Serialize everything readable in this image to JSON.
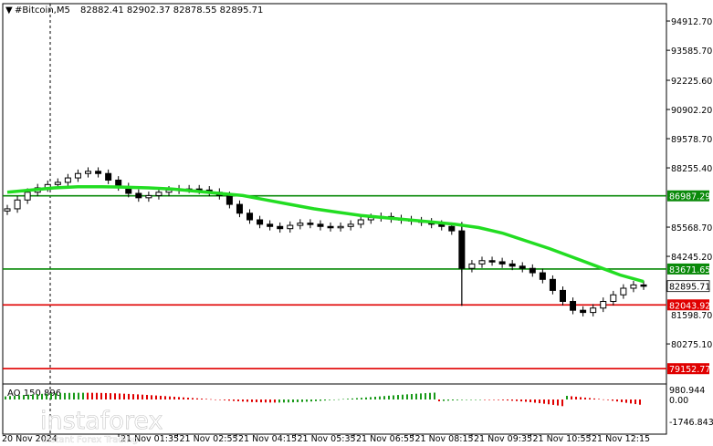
{
  "header": {
    "symbol": "#Bitcoin,M5",
    "ohlc": "82882.41 82902.37 82878.55 82895.71"
  },
  "price_axis": {
    "ticks": [
      "94912.70",
      "93585.70",
      "92225.60",
      "90902.20",
      "89578.70",
      "88255.40",
      "85568.70",
      "84245.20",
      "80275.10",
      "79152.77"
    ],
    "min": 78500,
    "max": 95700
  },
  "levels": [
    {
      "label": "86987.29",
      "price": 86987.29,
      "color": "#0a8a0a",
      "tag_bg": "#0a8a0a",
      "tag_fg": "#ffffff"
    },
    {
      "label": "83671.65",
      "price": 83671.65,
      "color": "#0a8a0a",
      "tag_bg": "#0a8a0a",
      "tag_fg": "#ffffff"
    },
    {
      "label": "82043.92",
      "price": 82043.92,
      "color": "#e00000",
      "tag_bg": "#e00000",
      "tag_fg": "#ffffff"
    },
    {
      "label": "79152.77",
      "price": 79152.77,
      "color": "#e00000",
      "tag_bg": "#e00000",
      "tag_fg": "#ffffff"
    }
  ],
  "current_price": {
    "label": "82895.71",
    "price": 82895.71
  },
  "extra_price_labels": [
    {
      "label": "81598.70",
      "price": 81598.7
    }
  ],
  "time_axis": {
    "labels": [
      "21 Nov 01:35",
      "21 Nov 02:55",
      "21 Nov 04:15",
      "21 Nov 05:35",
      "21 Nov 06:55",
      "21 Nov 08:15",
      "21 Nov 09:35",
      "21 Nov 10:55",
      "21 Nov 12:15"
    ],
    "left_partial": "20 Nov 2024"
  },
  "indicator": {
    "label": "AO 150.896",
    "axis_top": "980.944",
    "axis_zero": "0.00",
    "axis_bottom": "-1746.843"
  },
  "watermark": {
    "brand": "instaforex",
    "tagline": "Instant Forex Trading"
  },
  "colors": {
    "ma": "#22dd22",
    "candle": "#000000",
    "ao_up": "#1a9a1a",
    "ao_down": "#e00000",
    "grid": "#cccccc"
  },
  "chart_data": {
    "type": "line",
    "series": [
      {
        "values": [
          86400,
          86800,
          87150,
          87350,
          87500,
          87600,
          87800,
          88000,
          88100,
          88000,
          87700,
          87400,
          87100,
          86900,
          87000,
          87150,
          87250,
          87300,
          87300,
          87250,
          87150,
          87000,
          86600,
          86200,
          85900,
          85700,
          85600,
          85500,
          85650,
          85750,
          85700,
          85600,
          85550,
          85600,
          85700,
          85900,
          86000,
          86050,
          85950,
          85900,
          85850,
          85800,
          85700,
          85600,
          85400,
          83700,
          83900,
          84050,
          84000,
          83900,
          83800,
          83700,
          83500,
          83200,
          82700,
          82200,
          81800,
          81700,
          81900,
          82200,
          82500,
          82800,
          82950,
          82900
        ]
      },
      {
        "values": [
          87150,
          87250,
          87350,
          87400,
          87400,
          87380,
          87350,
          87300,
          87200,
          87100,
          87000,
          86800,
          86600,
          86400,
          86250,
          86100,
          86000,
          85900,
          85800,
          85700,
          85550,
          85300,
          84950,
          84600,
          84200,
          83800,
          83400,
          83100
        ]
      }
    ]
  }
}
